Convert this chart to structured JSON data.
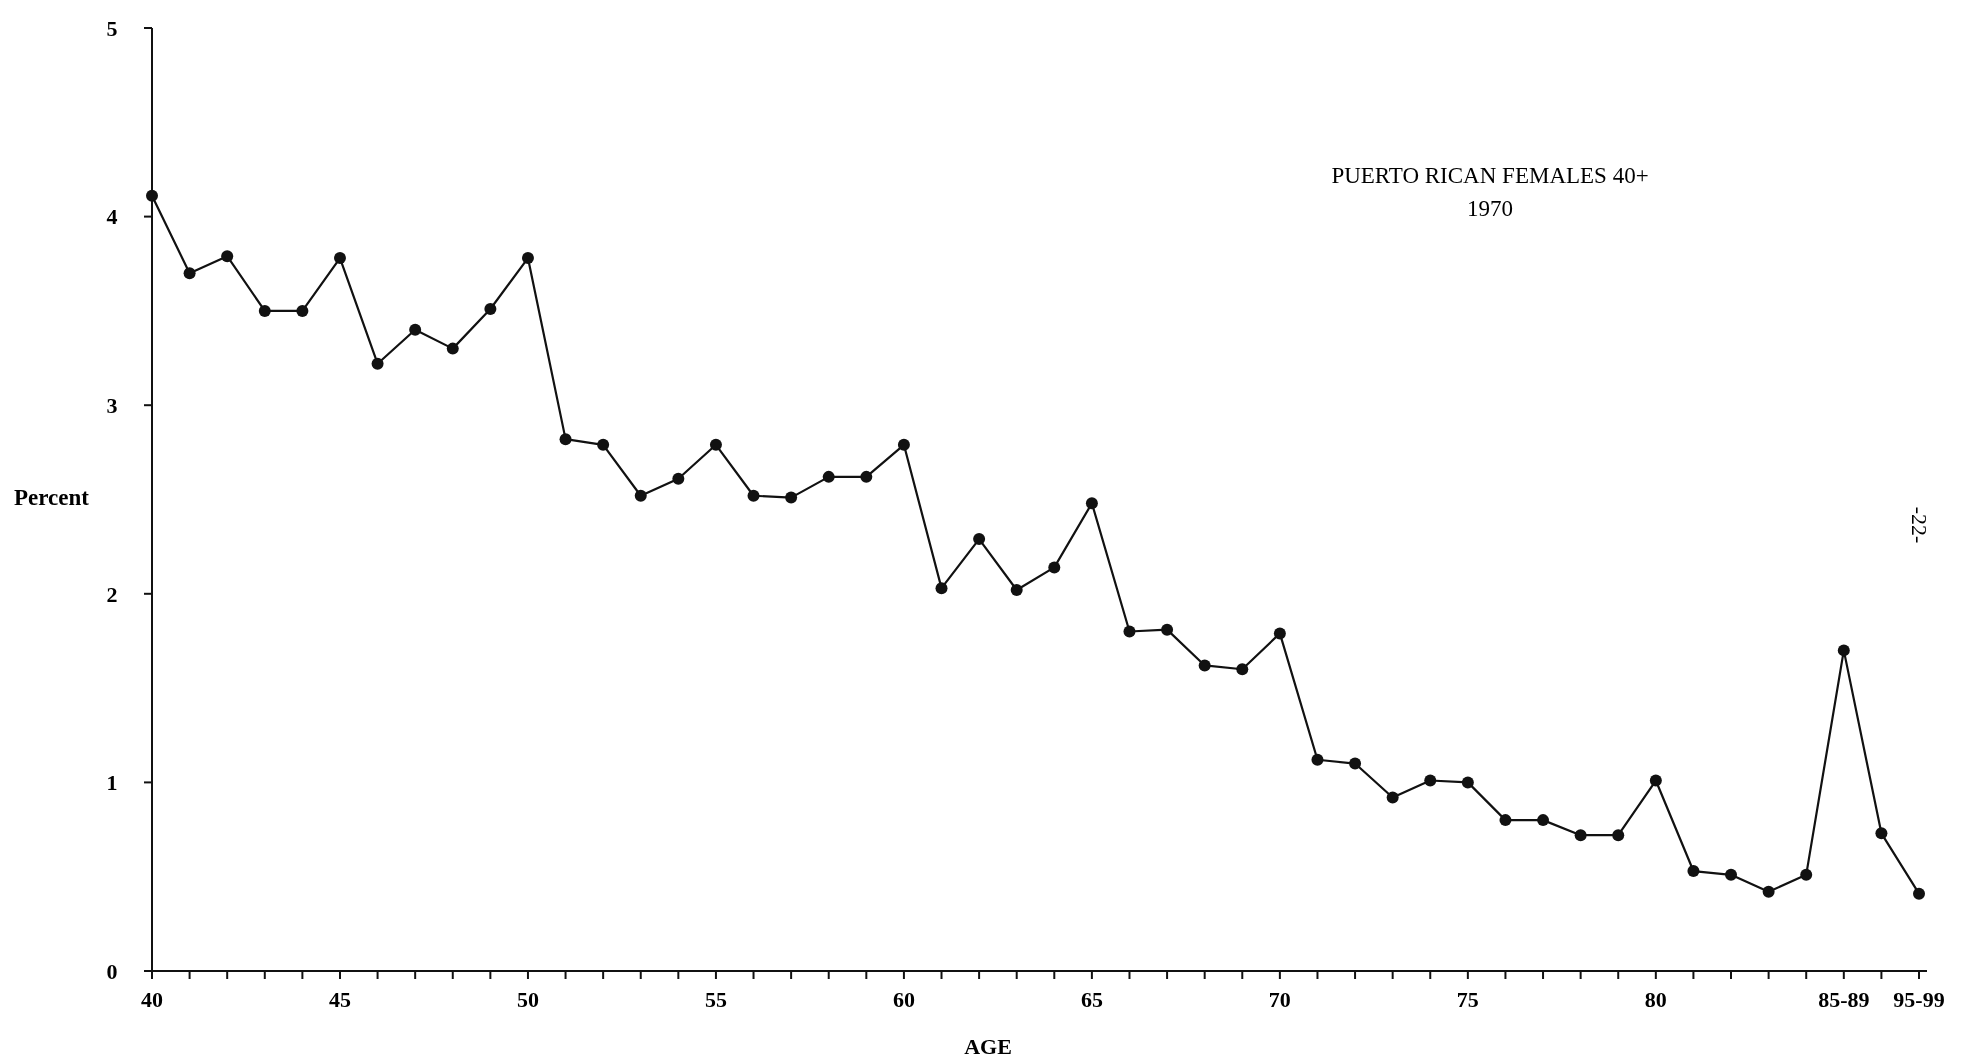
{
  "chart_data": {
    "type": "line",
    "title": "PUERTO RICAN FEMALES 40+",
    "subtitle": "1970",
    "xlabel": "AGE",
    "ylabel": "Percent",
    "categories": [
      "40",
      null,
      null,
      null,
      null,
      "45",
      null,
      null,
      null,
      null,
      "50",
      null,
      null,
      null,
      null,
      "55",
      null,
      null,
      null,
      null,
      "60",
      null,
      null,
      null,
      null,
      "65",
      null,
      null,
      null,
      null,
      "70",
      null,
      null,
      null,
      null,
      "75",
      null,
      null,
      null,
      null,
      "80",
      null,
      null,
      null,
      null,
      "85-89",
      null,
      "95-99"
    ],
    "series": [
      {
        "color": "#111111",
        "values": [
          4.11,
          3.7,
          3.79,
          3.5,
          3.5,
          3.78,
          3.22,
          3.4,
          3.3,
          3.51,
          3.78,
          2.82,
          2.79,
          2.52,
          2.61,
          2.79,
          2.52,
          2.51,
          2.62,
          2.62,
          2.79,
          2.03,
          2.29,
          2.02,
          2.14,
          2.48,
          1.8,
          1.81,
          1.62,
          1.6,
          1.79,
          1.12,
          1.1,
          0.92,
          1.01,
          1.0,
          0.8,
          0.8,
          0.72,
          0.72,
          1.01,
          0.53,
          0.51,
          0.42,
          0.51,
          1.7,
          0.73,
          0.41
        ]
      }
    ],
    "ylim": [
      0,
      5
    ],
    "yticks": [
      0,
      1,
      2,
      3,
      4,
      5
    ],
    "marker": "circle",
    "line_style": "solid",
    "annotations": [
      "-22-"
    ]
  }
}
